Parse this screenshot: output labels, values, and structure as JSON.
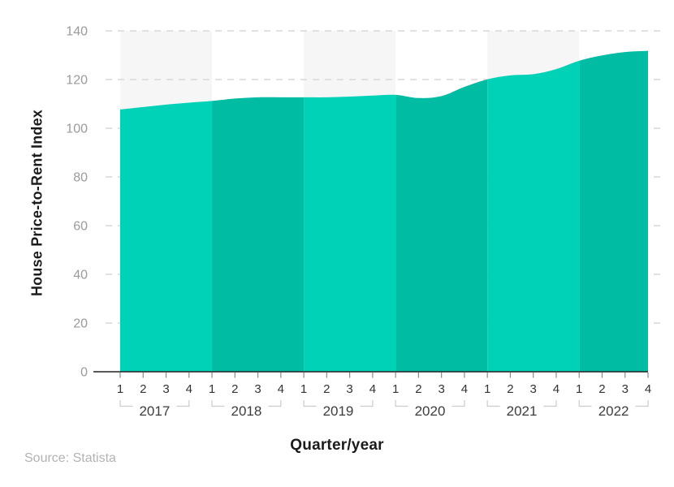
{
  "chart_data": {
    "type": "area",
    "series_name": "House Price-to-Rent Index",
    "ylabel": "House Price-to-Rent Index",
    "xlabel": "Quarter/year",
    "source": "Source: Statista",
    "ylim": [
      0,
      140
    ],
    "yticks": [
      0,
      20,
      40,
      60,
      80,
      100,
      120,
      140
    ],
    "quarter_labels": [
      "1",
      "2",
      "3",
      "4"
    ],
    "grid": "dashed-horizontal",
    "legend": "none",
    "groups": [
      {
        "year": "2017",
        "shaded_background": true,
        "area_fill": "#00d2b7",
        "values": [
          107.7,
          108.7,
          109.7,
          110.5
        ]
      },
      {
        "year": "2018",
        "shaded_background": false,
        "area_fill": "#00bca3",
        "values": [
          111.2,
          112.2,
          112.7,
          112.7
        ]
      },
      {
        "year": "2019",
        "shaded_background": true,
        "area_fill": "#00d2b7",
        "values": [
          112.7,
          112.7,
          113.0,
          113.4
        ]
      },
      {
        "year": "2020",
        "shaded_background": false,
        "area_fill": "#00bca3",
        "values": [
          113.7,
          112.4,
          113.2,
          117.0
        ]
      },
      {
        "year": "2021",
        "shaded_background": true,
        "area_fill": "#00d2b7",
        "values": [
          120.1,
          121.7,
          122.2,
          124.3
        ]
      },
      {
        "year": "2022",
        "shaded_background": false,
        "area_fill": "#00bca3",
        "values": [
          127.7,
          129.9,
          131.3,
          131.8
        ]
      }
    ],
    "colors": {
      "area_light": "#00d2b7",
      "area_dark": "#00bca3",
      "band": "#f6f6f6",
      "gridline": "#d9d9d9",
      "axis_line": "#222222",
      "tick_mark": "#8a8a8a",
      "y_tick_text": "#9b9b9b",
      "x_tick_text": "#333333",
      "year_text": "#3d3d3d",
      "bracket": "#cccccc",
      "label_text": "#1b1b1b",
      "source_text": "#b3b3b3"
    }
  }
}
